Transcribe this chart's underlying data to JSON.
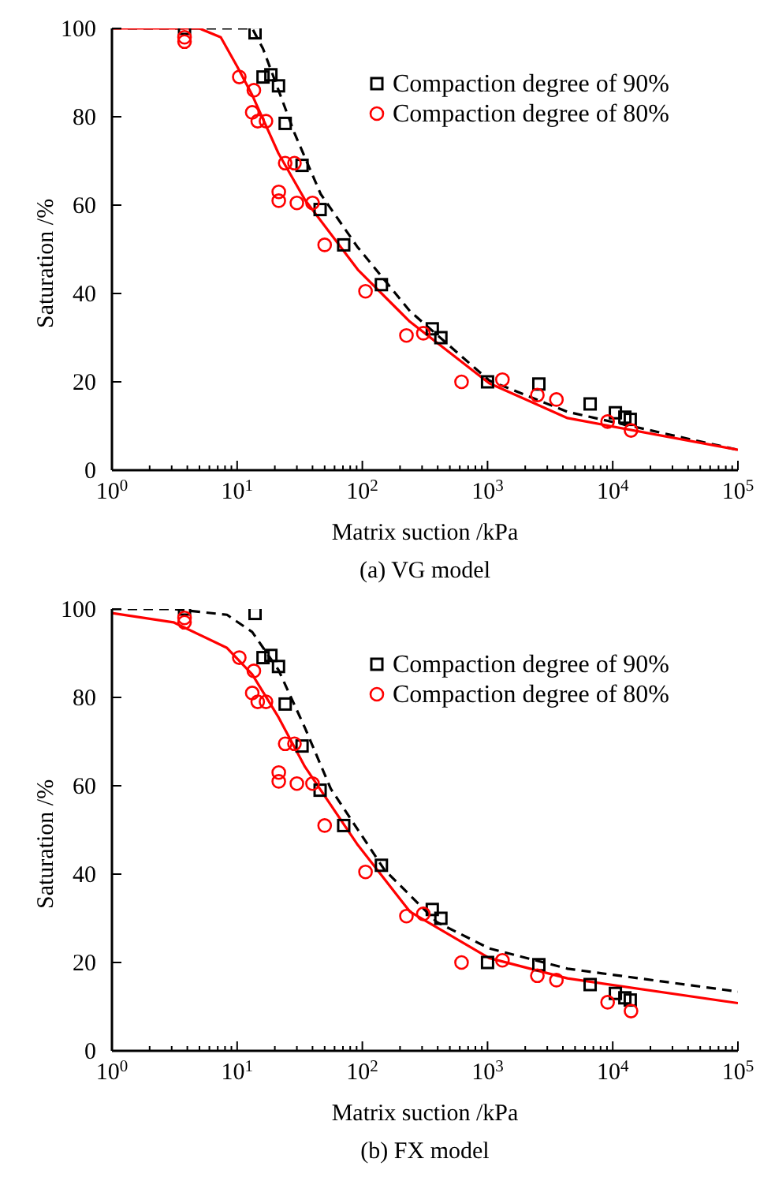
{
  "chart_data": [
    {
      "type": "scatter",
      "xlabel": "Matrix suction /kPa",
      "ylabel": "Saturation /%",
      "annotations": [
        "(a) VG model"
      ],
      "log": "x",
      "grid": false,
      "legend": "top right",
      "xlim": [
        1,
        100000
      ],
      "ylim": [
        0,
        100
      ],
      "xticks": [
        {
          "value": 1,
          "label": "10$^{0}$"
        },
        {
          "value": 2,
          "label": null
        },
        {
          "value": 3,
          "label": null
        },
        {
          "value": 4,
          "label": null
        },
        {
          "value": 5,
          "label": null
        },
        {
          "value": 6,
          "label": null
        },
        {
          "value": 7,
          "label": null
        },
        {
          "value": 8,
          "label": null
        },
        {
          "value": 9,
          "label": null
        },
        {
          "value": 10,
          "label": "10$^{1}$"
        },
        {
          "value": 20,
          "label": null
        },
        {
          "value": 30,
          "label": null
        },
        {
          "value": 40,
          "label": null
        },
        {
          "value": 50,
          "label": null
        },
        {
          "value": 60,
          "label": null
        },
        {
          "value": 70,
          "label": null
        },
        {
          "value": 80,
          "label": null
        },
        {
          "value": 90,
          "label": null
        },
        {
          "value": 100,
          "label": "10$^{2}$"
        },
        {
          "value": 200,
          "label": null
        },
        {
          "value": 300,
          "label": null
        },
        {
          "value": 400,
          "label": null
        },
        {
          "value": 500,
          "label": null
        },
        {
          "value": 600,
          "label": null
        },
        {
          "value": 700,
          "label": null
        },
        {
          "value": 800,
          "label": null
        },
        {
          "value": 900,
          "label": null
        },
        {
          "value": 1000,
          "label": "10$^{3}$"
        },
        {
          "value": 2000,
          "label": null
        },
        {
          "value": 3000,
          "label": null
        },
        {
          "value": 4000,
          "label": null
        },
        {
          "value": 5000,
          "label": null
        },
        {
          "value": 6000,
          "label": null
        },
        {
          "value": 7000,
          "label": null
        },
        {
          "value": 8000,
          "label": null
        },
        {
          "value": 9000,
          "label": null
        },
        {
          "value": 10000,
          "label": "10$^{4}$"
        },
        {
          "value": 20000,
          "label": null
        },
        {
          "value": 30000,
          "label": null
        },
        {
          "value": 40000,
          "label": null
        },
        {
          "value": 50000,
          "label": null
        },
        {
          "value": 60000,
          "label": null
        },
        {
          "value": 70000,
          "label": null
        },
        {
          "value": 80000,
          "label": null
        },
        {
          "value": 90000,
          "label": null
        },
        {
          "value": 100000,
          "label": "10$^{5}$"
        }
      ],
      "yticks": [
        0,
        20,
        40,
        60,
        80,
        100
      ],
      "series": [
        {
          "name": "Compaction degree of 90%",
          "type": "scatter",
          "marker": "square",
          "color": "#000000",
          "x": [
            3.8,
            13.9,
            16.1,
            18.6,
            21.4,
            24.2,
            33,
            46,
            71,
            142,
            362,
            424,
            1000,
            2570,
            6600,
            10500,
            12500,
            13800
          ],
          "values": [
            100,
            99,
            89,
            89.5,
            87,
            78.5,
            69,
            59,
            51,
            42,
            32,
            30,
            20,
            19.5,
            15,
            13,
            12,
            11.5
          ]
        },
        {
          "name": "Compaction degree of 80%",
          "type": "scatter",
          "marker": "circle",
          "color": "#ff0000",
          "x": [
            3.8,
            3.8,
            10.4,
            13.6,
            13.2,
            14.6,
            17,
            21.5,
            21.5,
            24.2,
            28.7,
            30,
            40,
            50,
            106,
            225,
            307,
            620,
            1315,
            2500,
            3550,
            9100,
            14000
          ],
          "values": [
            98,
            97,
            89,
            86,
            81,
            79,
            79,
            63,
            61,
            69.5,
            69.5,
            60.5,
            60.5,
            51,
            40.5,
            30.5,
            31,
            20,
            20.5,
            17,
            16,
            11,
            9
          ]
        },
        {
          "type": "line",
          "marker": "none",
          "line_style": "dashed",
          "color": "#000000",
          "x": [
            1,
            10,
            13.2,
            16.1,
            21.4,
            28.7,
            46.5,
            91,
            240,
            1030,
            4350,
            100000
          ],
          "values": [
            100,
            100,
            100,
            95.4,
            86,
            76.3,
            62.5,
            50.6,
            36,
            20.3,
            13.2,
            4.6
          ]
        },
        {
          "type": "line",
          "marker": "none",
          "line_style": "solid",
          "color": "#ff0000",
          "x": [
            1,
            5,
            7.4,
            10,
            13.2,
            21.4,
            34.8,
            92,
            240,
            1030,
            4350,
            100000
          ],
          "values": [
            100,
            100,
            98,
            91.4,
            84.9,
            71.7,
            61.2,
            45.4,
            33.6,
            19.7,
            11.8,
            4.6
          ]
        }
      ]
    },
    {
      "type": "scatter",
      "xlabel": "Matrix suction /kPa",
      "ylabel": "Saturation /%",
      "annotations": [
        "(b) FX model"
      ],
      "log": "x",
      "grid": false,
      "legend": "top right",
      "xlim": [
        1,
        100000
      ],
      "ylim": [
        0,
        100
      ],
      "xticks": [
        {
          "value": 1,
          "label": "10$^{0}$"
        },
        {
          "value": 2,
          "label": null
        },
        {
          "value": 3,
          "label": null
        },
        {
          "value": 4,
          "label": null
        },
        {
          "value": 5,
          "label": null
        },
        {
          "value": 6,
          "label": null
        },
        {
          "value": 7,
          "label": null
        },
        {
          "value": 8,
          "label": null
        },
        {
          "value": 9,
          "label": null
        },
        {
          "value": 10,
          "label": "10$^{1}$"
        },
        {
          "value": 20,
          "label": null
        },
        {
          "value": 30,
          "label": null
        },
        {
          "value": 40,
          "label": null
        },
        {
          "value": 50,
          "label": null
        },
        {
          "value": 60,
          "label": null
        },
        {
          "value": 70,
          "label": null
        },
        {
          "value": 80,
          "label": null
        },
        {
          "value": 90,
          "label": null
        },
        {
          "value": 100,
          "label": "10$^{2}$"
        },
        {
          "value": 200,
          "label": null
        },
        {
          "value": 300,
          "label": null
        },
        {
          "value": 400,
          "label": null
        },
        {
          "value": 500,
          "label": null
        },
        {
          "value": 600,
          "label": null
        },
        {
          "value": 700,
          "label": null
        },
        {
          "value": 800,
          "label": null
        },
        {
          "value": 900,
          "label": null
        },
        {
          "value": 1000,
          "label": "10$^{3}$"
        },
        {
          "value": 2000,
          "label": null
        },
        {
          "value": 3000,
          "label": null
        },
        {
          "value": 4000,
          "label": null
        },
        {
          "value": 5000,
          "label": null
        },
        {
          "value": 6000,
          "label": null
        },
        {
          "value": 7000,
          "label": null
        },
        {
          "value": 8000,
          "label": null
        },
        {
          "value": 9000,
          "label": null
        },
        {
          "value": 10000,
          "label": "10$^{4}$"
        },
        {
          "value": 20000,
          "label": null
        },
        {
          "value": 30000,
          "label": null
        },
        {
          "value": 40000,
          "label": null
        },
        {
          "value": 50000,
          "label": null
        },
        {
          "value": 60000,
          "label": null
        },
        {
          "value": 70000,
          "label": null
        },
        {
          "value": 80000,
          "label": null
        },
        {
          "value": 90000,
          "label": null
        },
        {
          "value": 100000,
          "label": "10$^{5}$"
        }
      ],
      "yticks": [
        0,
        20,
        40,
        60,
        80,
        100
      ],
      "series": [
        {
          "name": "Compaction degree of 90%",
          "type": "scatter",
          "marker": "square",
          "color": "#000000",
          "x": [
            3.8,
            13.9,
            16.1,
            18.6,
            21.4,
            24.2,
            33,
            46,
            71,
            142,
            362,
            424,
            1000,
            2570,
            6600,
            10500,
            12500,
            13800
          ],
          "values": [
            100,
            99,
            89,
            89.5,
            87,
            78.5,
            69,
            59,
            51,
            42,
            32,
            30,
            20,
            19.5,
            15,
            13,
            12,
            11.5
          ]
        },
        {
          "name": "Compaction degree of 80%",
          "type": "scatter",
          "marker": "circle",
          "color": "#ff0000",
          "x": [
            3.8,
            3.8,
            10.4,
            13.6,
            13.2,
            14.6,
            17,
            21.5,
            21.5,
            24.2,
            28.7,
            30,
            40,
            50,
            106,
            225,
            307,
            620,
            1315,
            2500,
            3550,
            9100,
            14000
          ],
          "values": [
            98,
            97,
            89,
            86,
            81,
            79,
            79,
            63,
            61,
            69.5,
            69.5,
            60.5,
            60.5,
            51,
            40.5,
            30.5,
            31,
            20,
            20.5,
            17,
            16,
            11,
            9
          ]
        },
        {
          "type": "line",
          "marker": "none",
          "line_style": "dashed",
          "color": "#000000",
          "x": [
            1,
            3.1,
            8.3,
            13.2,
            21.4,
            34.8,
            56,
            150,
            395,
            1030,
            4350,
            100000
          ],
          "values": [
            100,
            100,
            98.7,
            94.8,
            86.2,
            73.1,
            59.3,
            41,
            29.1,
            23.2,
            18.6,
            13.4
          ]
        },
        {
          "type": "line",
          "marker": "none",
          "line_style": "solid",
          "color": "#ff0000",
          "x": [
            1,
            3.1,
            8.3,
            13.2,
            21.4,
            34.8,
            92,
            240,
            1030,
            4350,
            100000
          ],
          "values": [
            99.1,
            97,
            91.2,
            85.2,
            75.5,
            64.3,
            46.6,
            31.5,
            21,
            16.4,
            10.8
          ]
        }
      ]
    }
  ]
}
